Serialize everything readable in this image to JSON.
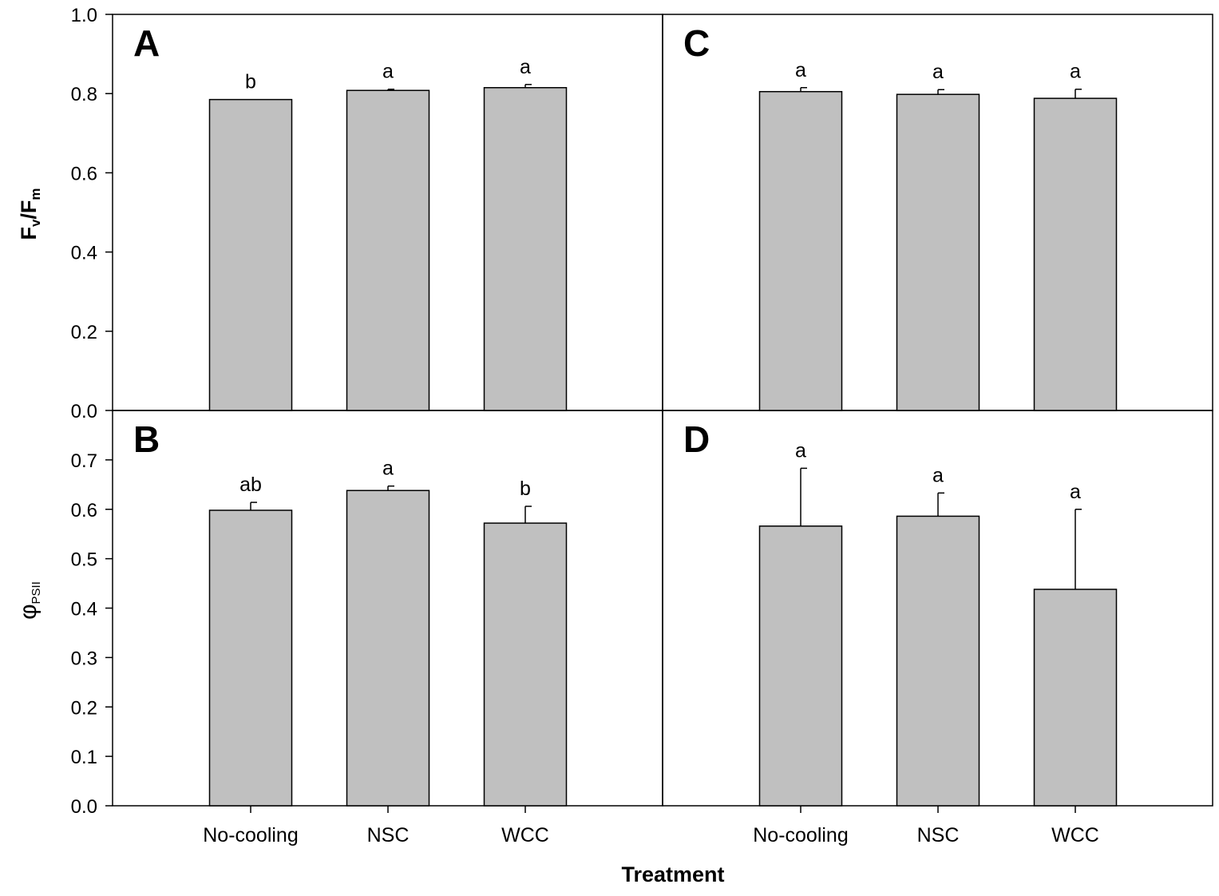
{
  "chart_data": {
    "type": "bar",
    "layout": "2x2 panels, shared x axis per column, shared y axis per row",
    "xlabel": "Treatment",
    "categories": [
      "No-cooling",
      "NSC",
      "WCC"
    ],
    "rows": [
      {
        "ylabel_main": "F",
        "ylabel_sub1": "v",
        "ylabel_mid": "/F",
        "ylabel_sub2": "m",
        "ylim": [
          0,
          1.0
        ],
        "yticks": [
          0.0,
          0.2,
          0.4,
          0.6,
          0.8,
          1.0
        ],
        "tick_labels": [
          "0.0",
          "0.2",
          "0.4",
          "0.6",
          "0.8",
          "1.0"
        ]
      },
      {
        "ylabel_main": "φ",
        "ylabel_sub1": "PSII",
        "ylim": [
          0,
          0.8
        ],
        "yticks": [
          0.0,
          0.1,
          0.2,
          0.3,
          0.4,
          0.5,
          0.6,
          0.7
        ],
        "tick_labels": [
          "0.0",
          "0.1",
          "0.2",
          "0.3",
          "0.4",
          "0.5",
          "0.6",
          "0.7"
        ]
      }
    ],
    "panels": [
      {
        "label": "A",
        "row": 0,
        "col": 0,
        "values": [
          0.785,
          0.808,
          0.815
        ],
        "errors": [
          0.0,
          0.003,
          0.008
        ],
        "letters": [
          "b",
          "a",
          "a"
        ]
      },
      {
        "label": "C",
        "row": 0,
        "col": 1,
        "values": [
          0.805,
          0.798,
          0.788
        ],
        "errors": [
          0.01,
          0.012,
          0.023
        ],
        "letters": [
          "a",
          "a",
          "a"
        ]
      },
      {
        "label": "B",
        "row": 1,
        "col": 0,
        "values": [
          0.598,
          0.638,
          0.572
        ],
        "errors": [
          0.016,
          0.009,
          0.034
        ],
        "letters": [
          "ab",
          "a",
          "b"
        ]
      },
      {
        "label": "D",
        "row": 1,
        "col": 1,
        "values": [
          0.566,
          0.586,
          0.438
        ],
        "errors": [
          0.117,
          0.047,
          0.162
        ],
        "letters": [
          "a",
          "a",
          "a"
        ]
      }
    ],
    "bar_color": "#c0c0c0",
    "grid": false,
    "legend": "none"
  }
}
